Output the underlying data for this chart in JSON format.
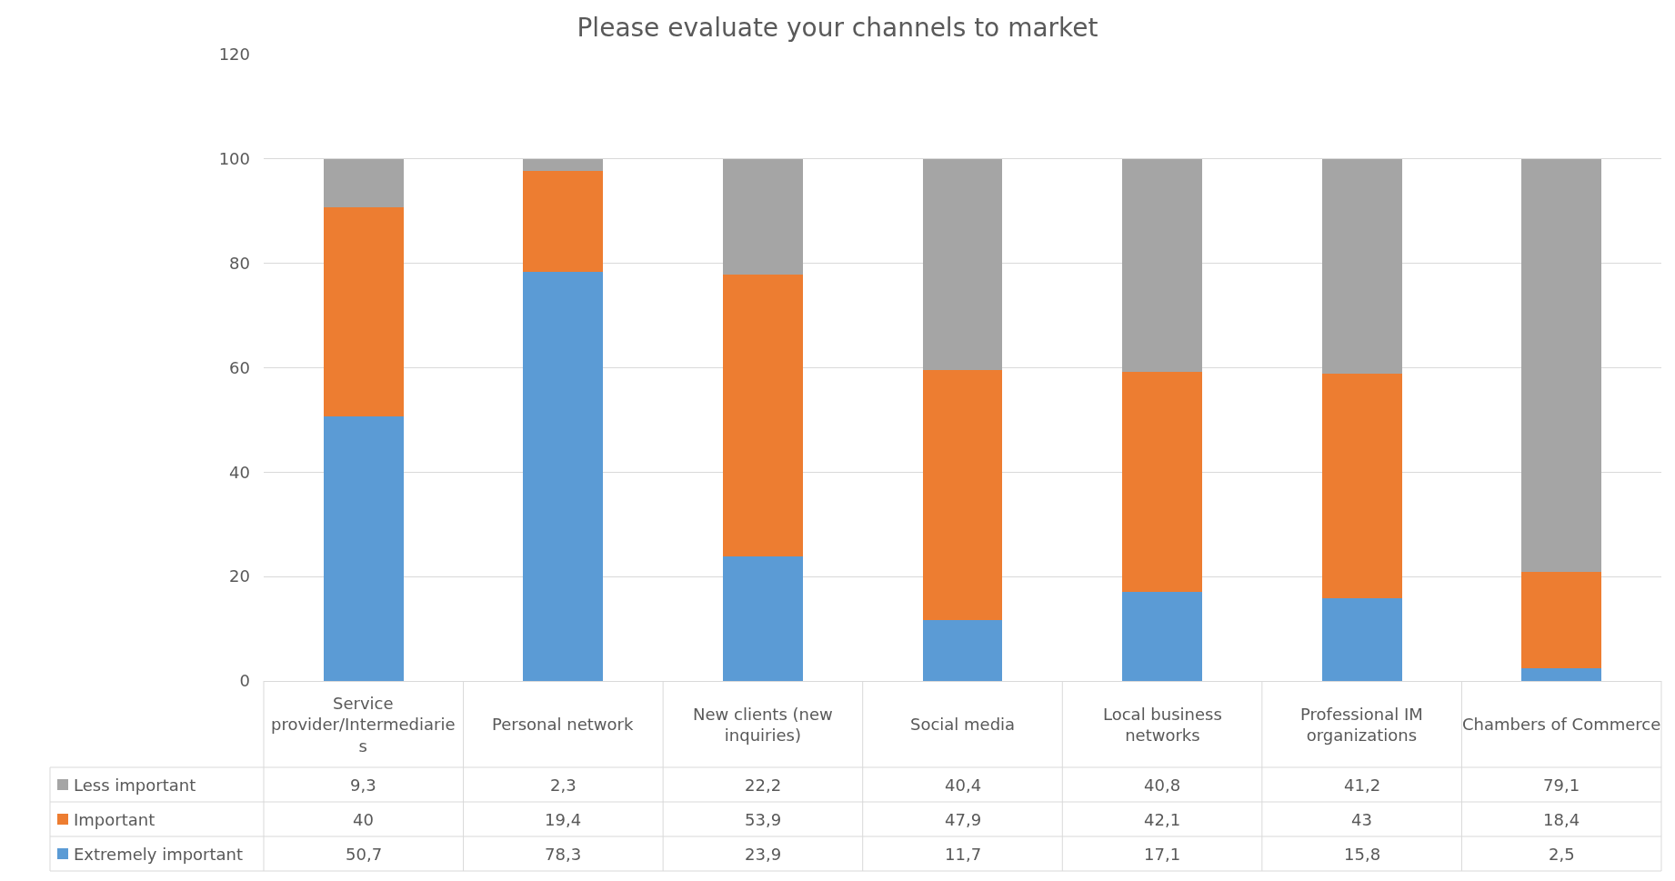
{
  "chart_data": {
    "type": "bar",
    "title": "Please evaluate your channels to market",
    "categories": [
      "Service provider/Intermediaries",
      "Personal network",
      "New clients (new inquiries)",
      "Social media",
      "Local business networks",
      "Professional IM organizations",
      "Chambers of Commerce"
    ],
    "stacked": true,
    "series": [
      {
        "name": "Extremely important",
        "color": "#5b9bd5",
        "values": [
          50.7,
          78.3,
          23.9,
          11.7,
          17.1,
          15.8,
          2.5
        ],
        "value_labels": [
          "50,7",
          "78,3",
          "23,9",
          "11,7",
          "17,1",
          "15,8",
          "2,5"
        ]
      },
      {
        "name": "Important",
        "color": "#ed7d31",
        "values": [
          40,
          19.4,
          53.9,
          47.9,
          42.1,
          43,
          18.4
        ],
        "value_labels": [
          "40",
          "19,4",
          "53,9",
          "47,9",
          "42,1",
          "43",
          "18,4"
        ]
      },
      {
        "name": "Less important",
        "color": "#a5a5a5",
        "values": [
          9.3,
          2.3,
          22.2,
          40.4,
          40.8,
          41.2,
          79.1
        ],
        "value_labels": [
          "9,3",
          "2,3",
          "22,2",
          "40,4",
          "40,8",
          "41,2",
          "79,1"
        ]
      }
    ],
    "ylim": [
      0,
      120
    ],
    "yticks": [
      0,
      20,
      40,
      60,
      80,
      100,
      120
    ],
    "grid": "y",
    "legend": "left"
  }
}
